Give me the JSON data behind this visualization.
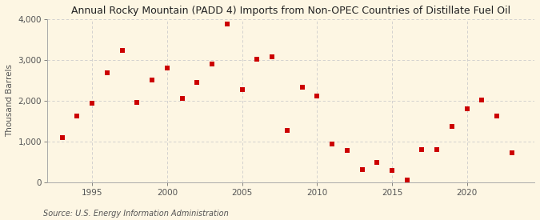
{
  "title": "Annual Rocky Mountain (PADD 4) Imports from Non-OPEC Countries of Distillate Fuel Oil",
  "ylabel": "Thousand Barrels",
  "source": "Source: U.S. Energy Information Administration",
  "background_color": "#fdf6e3",
  "marker_color": "#cc0000",
  "years": [
    1993,
    1994,
    1995,
    1996,
    1997,
    1998,
    1999,
    2000,
    2001,
    2002,
    2003,
    2004,
    2005,
    2006,
    2007,
    2008,
    2009,
    2010,
    2011,
    2012,
    2013,
    2014,
    2015,
    2016,
    2017,
    2018,
    2019,
    2020,
    2021,
    2022,
    2023
  ],
  "values": [
    1100,
    1620,
    1940,
    2680,
    3230,
    1950,
    2500,
    2800,
    2060,
    2440,
    2900,
    3880,
    2280,
    3020,
    3080,
    1270,
    2330,
    2110,
    930,
    780,
    310,
    490,
    280,
    60,
    790,
    790,
    1370,
    1800,
    2010,
    1620,
    730
  ],
  "xlim": [
    1992,
    2024.5
  ],
  "ylim": [
    0,
    4000
  ],
  "yticks": [
    0,
    1000,
    2000,
    3000,
    4000
  ],
  "xticks": [
    1995,
    2000,
    2005,
    2010,
    2015,
    2020
  ],
  "grid_color": "#cccccc",
  "title_fontsize": 9,
  "label_fontsize": 7.5,
  "source_fontsize": 7,
  "tick_fontsize": 7.5
}
